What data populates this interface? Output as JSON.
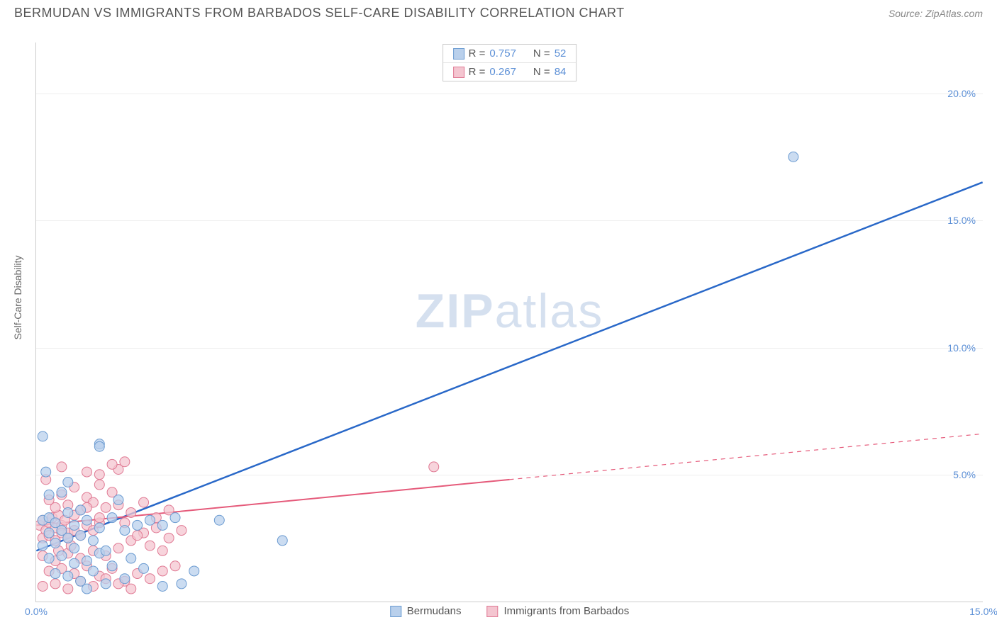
{
  "header": {
    "title": "BERMUDAN VS IMMIGRANTS FROM BARBADOS SELF-CARE DISABILITY CORRELATION CHART",
    "source_label": "Source: ",
    "source_value": "ZipAtlas.com"
  },
  "chart": {
    "type": "scatter",
    "ylabel": "Self-Care Disability",
    "xlim": [
      0,
      15
    ],
    "ylim": [
      0,
      22
    ],
    "xtick_labels": [
      "0.0%",
      "15.0%"
    ],
    "xtick_positions": [
      0,
      15
    ],
    "ytick_labels": [
      "5.0%",
      "10.0%",
      "15.0%",
      "20.0%"
    ],
    "ytick_positions": [
      5,
      10,
      15,
      20
    ],
    "grid_color": "#eeeeee",
    "axis_color": "#cccccc",
    "background_color": "#ffffff",
    "label_fontsize": 14,
    "tick_fontsize": 14,
    "tick_color": "#5b8fd6",
    "label_color": "#666666"
  },
  "watermark": {
    "part1": "ZIP",
    "part2": "atlas",
    "color": "#d5e0ef"
  },
  "series": [
    {
      "name": "Bermudans",
      "marker_fill": "#b9d0ec",
      "marker_stroke": "#6b9bd1",
      "marker_radius": 7,
      "line_color": "#2968c8",
      "line_width": 2.5,
      "regression": {
        "x1": 0,
        "y1": 2.0,
        "x2": 15,
        "y2": 16.5,
        "dashed_from": null
      },
      "R": "0.757",
      "N": "52",
      "points": [
        [
          0.1,
          6.5
        ],
        [
          1.0,
          6.2
        ],
        [
          1.0,
          6.1
        ],
        [
          0.2,
          4.2
        ],
        [
          0.4,
          4.3
        ],
        [
          0.1,
          3.2
        ],
        [
          0.2,
          3.3
        ],
        [
          0.3,
          3.1
        ],
        [
          0.5,
          3.5
        ],
        [
          0.7,
          3.6
        ],
        [
          0.2,
          2.7
        ],
        [
          0.4,
          2.8
        ],
        [
          0.6,
          3.0
        ],
        [
          0.8,
          3.2
        ],
        [
          1.0,
          2.9
        ],
        [
          0.1,
          2.2
        ],
        [
          0.3,
          2.3
        ],
        [
          0.5,
          2.5
        ],
        [
          0.7,
          2.6
        ],
        [
          1.2,
          3.3
        ],
        [
          1.4,
          2.8
        ],
        [
          1.6,
          3.0
        ],
        [
          1.8,
          3.2
        ],
        [
          2.0,
          3.0
        ],
        [
          2.2,
          3.3
        ],
        [
          0.2,
          1.7
        ],
        [
          0.4,
          1.8
        ],
        [
          0.6,
          1.5
        ],
        [
          0.8,
          1.6
        ],
        [
          1.0,
          1.9
        ],
        [
          1.2,
          1.4
        ],
        [
          1.5,
          1.7
        ],
        [
          0.3,
          1.1
        ],
        [
          0.5,
          1.0
        ],
        [
          0.7,
          0.8
        ],
        [
          0.9,
          1.2
        ],
        [
          1.1,
          0.7
        ],
        [
          1.4,
          0.9
        ],
        [
          1.7,
          1.3
        ],
        [
          2.0,
          0.6
        ],
        [
          2.3,
          0.7
        ],
        [
          2.5,
          1.2
        ],
        [
          2.9,
          3.2
        ],
        [
          3.9,
          2.4
        ],
        [
          0.15,
          5.1
        ],
        [
          0.5,
          4.7
        ],
        [
          0.6,
          2.1
        ],
        [
          1.3,
          4.0
        ],
        [
          1.1,
          2.0
        ],
        [
          0.9,
          2.4
        ],
        [
          12.0,
          17.5
        ],
        [
          0.8,
          0.5
        ]
      ]
    },
    {
      "name": "Immigrants from Barbados",
      "marker_fill": "#f4c5d0",
      "marker_stroke": "#e07a94",
      "marker_radius": 7,
      "line_color": "#e55a7a",
      "line_width": 2,
      "regression": {
        "x1": 0,
        "y1": 3.0,
        "x2": 15,
        "y2": 6.6,
        "dashed_from": 7.5
      },
      "R": "0.267",
      "N": "84",
      "points": [
        [
          0.05,
          3.0
        ],
        [
          0.1,
          3.2
        ],
        [
          0.15,
          2.8
        ],
        [
          0.2,
          3.1
        ],
        [
          0.25,
          3.3
        ],
        [
          0.3,
          2.9
        ],
        [
          0.35,
          3.4
        ],
        [
          0.4,
          3.0
        ],
        [
          0.45,
          3.2
        ],
        [
          0.5,
          2.7
        ],
        [
          0.1,
          2.5
        ],
        [
          0.2,
          2.6
        ],
        [
          0.3,
          2.4
        ],
        [
          0.4,
          2.7
        ],
        [
          0.5,
          2.5
        ],
        [
          0.6,
          2.8
        ],
        [
          0.7,
          2.6
        ],
        [
          0.8,
          3.0
        ],
        [
          0.9,
          2.8
        ],
        [
          1.0,
          3.1
        ],
        [
          0.2,
          4.0
        ],
        [
          0.4,
          4.2
        ],
        [
          0.6,
          4.5
        ],
        [
          0.8,
          4.1
        ],
        [
          1.0,
          4.6
        ],
        [
          1.2,
          4.3
        ],
        [
          1.3,
          5.2
        ],
        [
          1.4,
          5.5
        ],
        [
          0.3,
          3.7
        ],
        [
          0.5,
          3.8
        ],
        [
          0.7,
          3.6
        ],
        [
          0.9,
          3.9
        ],
        [
          1.1,
          3.7
        ],
        [
          1.3,
          3.8
        ],
        [
          1.5,
          3.5
        ],
        [
          1.7,
          3.9
        ],
        [
          1.9,
          3.3
        ],
        [
          2.1,
          3.6
        ],
        [
          0.1,
          1.8
        ],
        [
          0.3,
          1.6
        ],
        [
          0.5,
          1.9
        ],
        [
          0.7,
          1.7
        ],
        [
          0.9,
          2.0
        ],
        [
          1.1,
          1.8
        ],
        [
          1.3,
          2.1
        ],
        [
          1.5,
          2.4
        ],
        [
          1.7,
          2.7
        ],
        [
          1.9,
          2.9
        ],
        [
          2.1,
          2.5
        ],
        [
          2.3,
          2.8
        ],
        [
          0.2,
          1.2
        ],
        [
          0.4,
          1.3
        ],
        [
          0.6,
          1.1
        ],
        [
          0.8,
          1.4
        ],
        [
          1.0,
          1.0
        ],
        [
          1.2,
          1.3
        ],
        [
          1.4,
          0.8
        ],
        [
          1.6,
          1.1
        ],
        [
          1.8,
          0.9
        ],
        [
          2.0,
          1.2
        ],
        [
          2.2,
          1.4
        ],
        [
          0.1,
          0.6
        ],
        [
          0.3,
          0.7
        ],
        [
          0.5,
          0.5
        ],
        [
          0.7,
          0.8
        ],
        [
          0.9,
          0.6
        ],
        [
          1.1,
          0.9
        ],
        [
          1.3,
          0.7
        ],
        [
          1.5,
          0.5
        ],
        [
          1.0,
          5.0
        ],
        [
          1.2,
          5.4
        ],
        [
          0.8,
          5.1
        ],
        [
          6.3,
          5.3
        ],
        [
          0.15,
          4.8
        ],
        [
          0.4,
          5.3
        ],
        [
          0.6,
          3.4
        ],
        [
          0.8,
          3.7
        ],
        [
          1.0,
          3.3
        ],
        [
          1.4,
          3.1
        ],
        [
          1.6,
          2.6
        ],
        [
          1.8,
          2.2
        ],
        [
          2.0,
          2.0
        ],
        [
          0.35,
          2.0
        ],
        [
          0.55,
          2.2
        ]
      ]
    }
  ],
  "legend_top": {
    "r_label": "R =",
    "n_label": "N ="
  },
  "legend_bottom": {
    "items": [
      "Bermudans",
      "Immigrants from Barbados"
    ]
  }
}
